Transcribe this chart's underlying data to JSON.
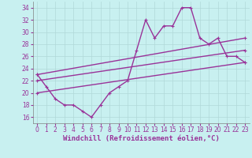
{
  "xlabel": "Windchill (Refroidissement éolien,°C)",
  "background_color": "#c8f0f0",
  "line_color": "#993399",
  "grid_color": "#b0d8d8",
  "xlim": [
    -0.5,
    23.5
  ],
  "ylim": [
    15,
    35
  ],
  "yticks": [
    16,
    18,
    20,
    22,
    24,
    26,
    28,
    30,
    32,
    34
  ],
  "xticks": [
    0,
    1,
    2,
    3,
    4,
    5,
    6,
    7,
    8,
    9,
    10,
    11,
    12,
    13,
    14,
    15,
    16,
    17,
    18,
    19,
    20,
    21,
    22,
    23
  ],
  "line1_x": [
    0,
    1,
    2,
    3,
    4,
    5,
    6,
    7,
    8,
    9,
    10,
    11,
    12,
    13,
    14,
    15,
    16,
    17,
    18,
    19,
    20,
    21,
    22,
    23
  ],
  "line1_y": [
    23,
    21,
    19,
    18,
    18,
    17,
    16,
    18,
    20,
    21,
    22,
    27,
    32,
    29,
    31,
    31,
    34,
    34,
    29,
    28,
    29,
    26,
    26,
    25
  ],
  "line2_x": [
    0,
    23
  ],
  "line2_y": [
    23,
    29
  ],
  "line3_x": [
    0,
    23
  ],
  "line3_y": [
    20,
    25
  ],
  "line4_x": [
    0,
    23
  ],
  "line4_y": [
    22,
    27
  ],
  "marker_size": 2.5,
  "linewidth": 1.0,
  "tick_fontsize": 5.5,
  "label_fontsize": 6.5
}
